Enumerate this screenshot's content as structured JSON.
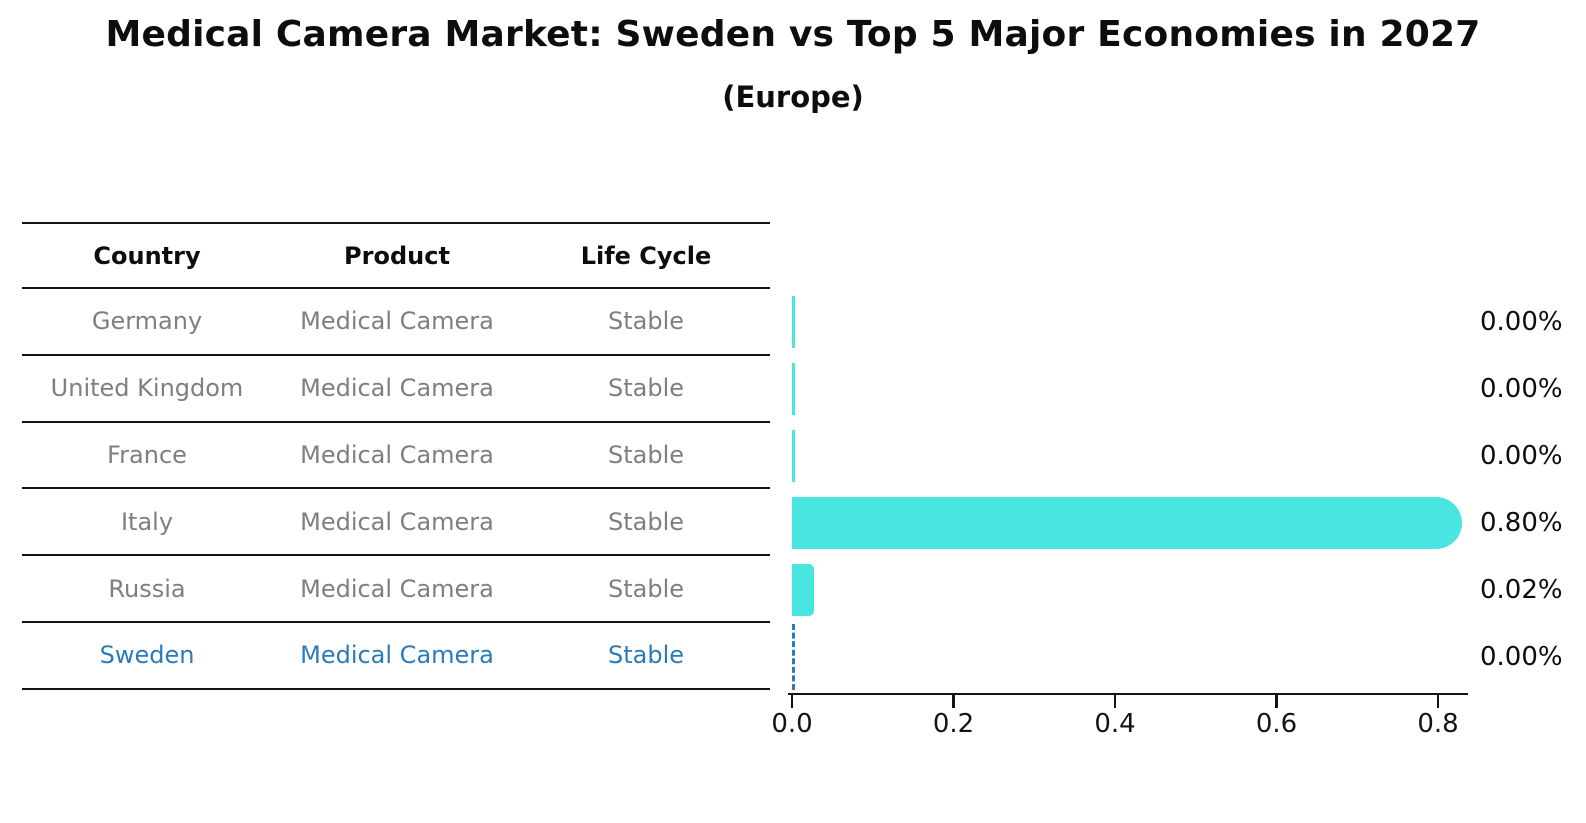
{
  "title": "Medical Camera Market: Sweden vs Top 5 Major Economies in 2027",
  "subtitle": "(Europe)",
  "table": {
    "headers": [
      "Country",
      "Product",
      "Life Cycle"
    ],
    "rows": [
      {
        "country": "Germany",
        "product": "Medical Camera",
        "life_cycle": "Stable",
        "highlighted": false
      },
      {
        "country": "United Kingdom",
        "product": "Medical Camera",
        "life_cycle": "Stable",
        "highlighted": false
      },
      {
        "country": "France",
        "product": "Medical Camera",
        "life_cycle": "Stable",
        "highlighted": false
      },
      {
        "country": "Italy",
        "product": "Medical Camera",
        "life_cycle": "Stable",
        "highlighted": false
      },
      {
        "country": "Russia",
        "product": "Medical Camera",
        "life_cycle": "Stable",
        "highlighted": false
      },
      {
        "country": "Sweden",
        "product": "Medical Camera",
        "life_cycle": "Stable",
        "highlighted": true
      }
    ]
  },
  "chart_data": {
    "type": "bar",
    "orientation": "horizontal",
    "title": "Medical Camera Market: Sweden vs Top 5 Major Economies in 2027 (Europe)",
    "categories": [
      "Germany",
      "United Kingdom",
      "France",
      "Italy",
      "Russia",
      "Sweden"
    ],
    "values": [
      0.0,
      0.0,
      0.0,
      0.8,
      0.02,
      0.0
    ],
    "value_labels": [
      "0.00%",
      "0.00%",
      "0.00%",
      "0.80%",
      "0.02%",
      "0.00%"
    ],
    "unit": "percent",
    "x_ticks": [
      "0.0",
      "0.2",
      "0.4",
      "0.6",
      "0.8"
    ],
    "xlim": [
      0,
      0.84
    ],
    "grid": false,
    "legend": false,
    "highlight_category": "Sweden",
    "highlight_style": "dashed zero line",
    "bar_color": "#49e5e0",
    "highlight_color": "#2b7bb9"
  },
  "colors": {
    "bar": "#49e5e0",
    "highlight": "#2b7bb9",
    "muted_text": "#7f7f7f",
    "text": "#0d0d0d",
    "background": "#ffffff"
  }
}
